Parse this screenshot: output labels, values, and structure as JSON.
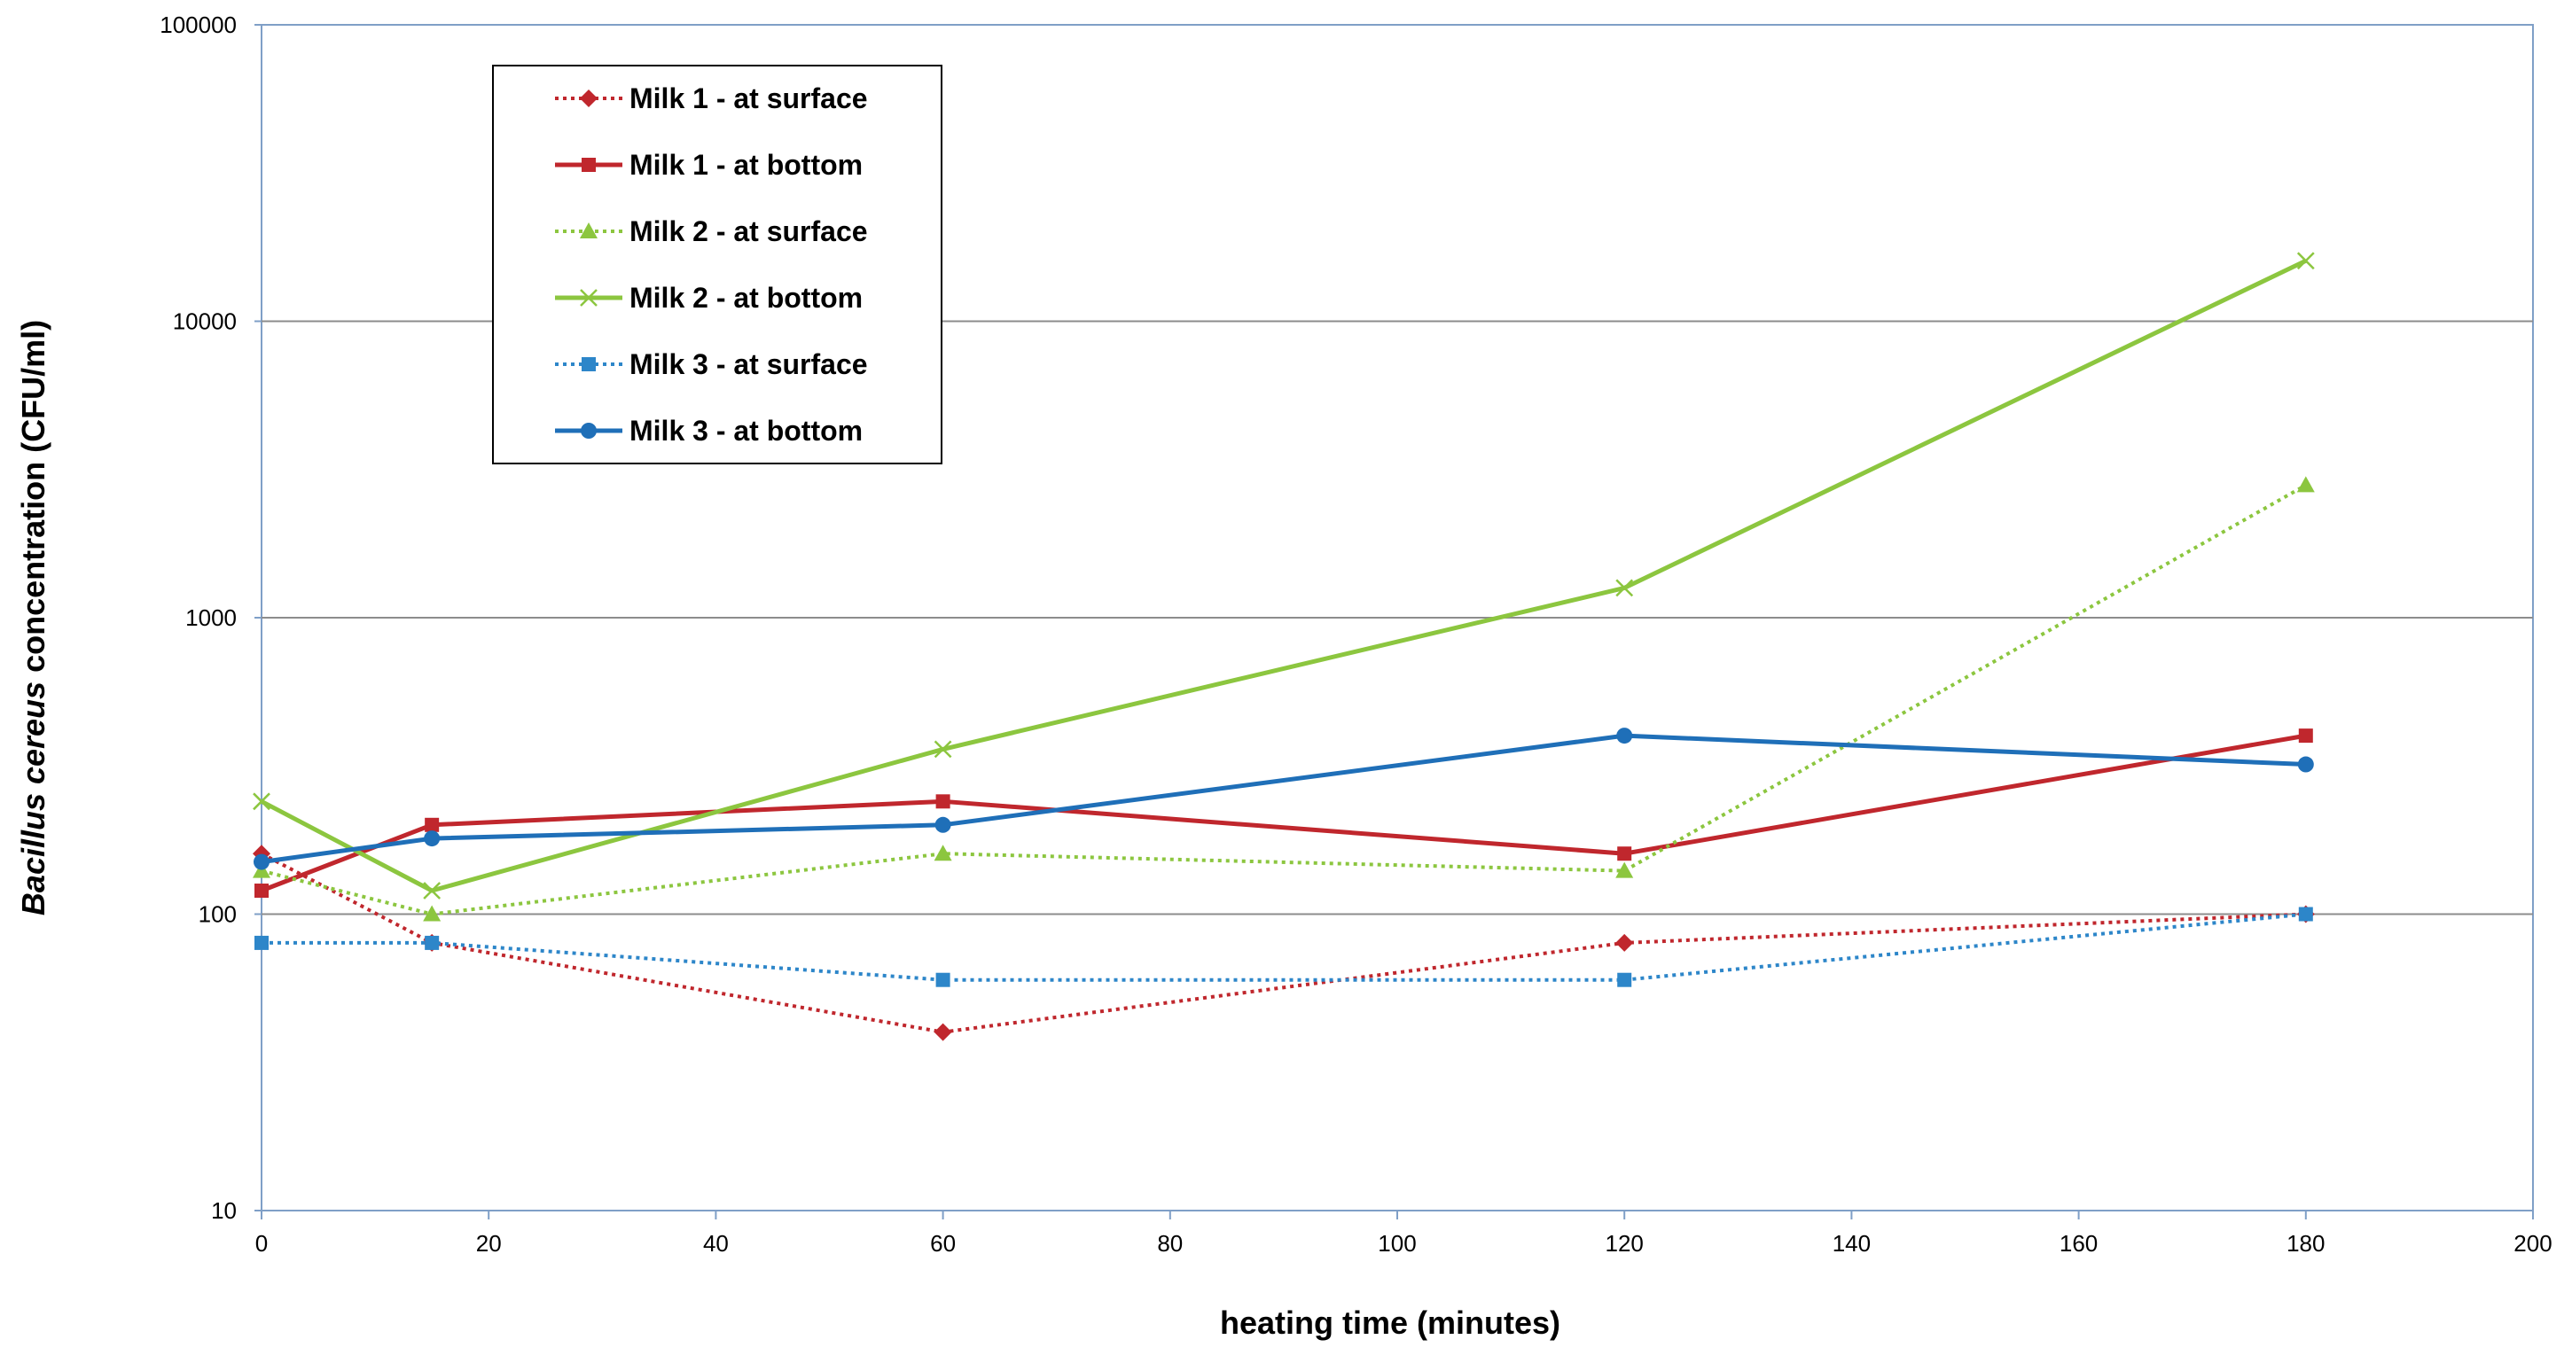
{
  "chart_data": {
    "type": "line",
    "title": "",
    "xlabel": "heating time (minutes)",
    "ylabel_italic": "Bacillus cereus",
    "ylabel_rest": " concentration (CFU/ml)",
    "yscale": "log",
    "xlim": [
      0,
      200
    ],
    "ylim": [
      10,
      100000
    ],
    "xticks": [
      0,
      20,
      40,
      60,
      80,
      100,
      120,
      140,
      160,
      180,
      200
    ],
    "yticks": [
      10,
      100,
      1000,
      10000,
      100000
    ],
    "grid": "horizontal",
    "legend_position": "top-left",
    "x": [
      0,
      15,
      60,
      120,
      180
    ],
    "series": [
      {
        "name": "Milk 1 - at surface",
        "values": [
          160,
          80,
          40,
          80,
          100
        ],
        "color": "#c0272d",
        "dash": "dotted",
        "marker": "diamond"
      },
      {
        "name": "Milk 1 - at bottom",
        "values": [
          120,
          200,
          240,
          160,
          400
        ],
        "color": "#c0272d",
        "dash": "solid",
        "marker": "square"
      },
      {
        "name": "Milk 2 - at surface",
        "values": [
          140,
          100,
          160,
          140,
          2800
        ],
        "color": "#8cc63f",
        "dash": "dotted",
        "marker": "triangle"
      },
      {
        "name": "Milk 2 - at bottom",
        "values": [
          240,
          120,
          360,
          1260,
          16000
        ],
        "color": "#8cc63f",
        "dash": "solid",
        "marker": "x"
      },
      {
        "name": "Milk 3 - at surface",
        "values": [
          80,
          80,
          60,
          60,
          100
        ],
        "color": "#2d86c9",
        "dash": "dotted",
        "marker": "square"
      },
      {
        "name": "Milk 3 - at bottom",
        "values": [
          150,
          180,
          200,
          400,
          320
        ],
        "color": "#1f6fb8",
        "dash": "solid",
        "marker": "circle"
      }
    ]
  }
}
